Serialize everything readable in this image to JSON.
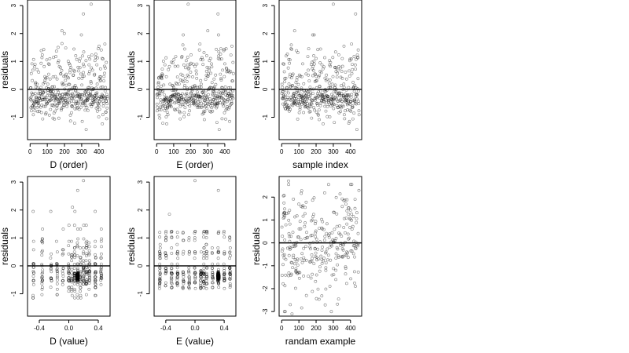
{
  "chart_data": [
    {
      "type": "scatter",
      "xlabel": "D (order)",
      "ylabel": "residuals",
      "x_ticks": [
        "0",
        "100",
        "200",
        "300",
        "400"
      ],
      "y_ticks": [
        "-1",
        "0",
        "1",
        "2",
        "3"
      ],
      "xlim": [
        -15,
        465
      ],
      "ylim": [
        -1.8,
        3.2
      ],
      "reference_line_y": 0,
      "n_points": 450,
      "x_range": [
        1,
        450
      ],
      "y_range": [
        -1.7,
        3.05
      ],
      "structure": "residuals vs observation order; band roughly -1.7 to 1.9 with a few outliers near 2.7 and 3.05",
      "outliers": [
        [
          115,
          1.1
        ],
        [
          310,
          2.7
        ],
        [
          355,
          3.05
        ],
        [
          185,
          2.1
        ]
      ]
    },
    {
      "type": "scatter",
      "xlabel": "E (order)",
      "ylabel": "residuals",
      "x_ticks": [
        "0",
        "100",
        "200",
        "300",
        "400"
      ],
      "y_ticks": [
        "-1",
        "0",
        "1",
        "2",
        "3"
      ],
      "xlim": [
        -15,
        465
      ],
      "ylim": [
        -1.8,
        3.2
      ],
      "reference_line_y": 0,
      "n_points": 450,
      "x_range": [
        1,
        450
      ],
      "y_range": [
        -1.7,
        3.05
      ],
      "structure": "residuals vs observation order; dense band between about -0.8 and 1.2",
      "outliers": [
        [
          185,
          3.05
        ],
        [
          360,
          2.7
        ],
        [
          300,
          2.1
        ]
      ]
    },
    {
      "type": "scatter",
      "xlabel": "sample index",
      "ylabel": "residuals",
      "x_ticks": [
        "0",
        "100",
        "200",
        "300",
        "400"
      ],
      "y_ticks": [
        "-1",
        "0",
        "1",
        "2",
        "3"
      ],
      "xlim": [
        -15,
        465
      ],
      "ylim": [
        -1.8,
        3.2
      ],
      "reference_line_y": 0,
      "n_points": 450,
      "x_range": [
        1,
        450
      ],
      "y_range": [
        -1.7,
        3.05
      ],
      "structure": "residuals vs sample index; no visible trend",
      "outliers": [
        [
          300,
          3.05
        ],
        [
          430,
          2.7
        ],
        [
          75,
          2.1
        ]
      ]
    },
    {
      "type": "scatter",
      "xlabel": "D (value)",
      "ylabel": "residuals",
      "x_ticks": [
        "-0.4",
        "0.0",
        "0.4"
      ],
      "y_ticks": [
        "-1",
        "0",
        "1",
        "2",
        "3"
      ],
      "xlim": [
        -0.56,
        0.56
      ],
      "ylim": [
        -1.8,
        3.2
      ],
      "reference_line_y": 0,
      "n_points": 450,
      "x_range": [
        -0.5,
        0.5
      ],
      "y_range": [
        -1.7,
        3.05
      ],
      "structure": "points stack in vertical columns at discrete D values; dense cluster near D=0.12, residual -0.4",
      "outliers": [
        [
          0.2,
          3.05
        ],
        [
          0.12,
          2.7
        ],
        [
          0.05,
          2.1
        ]
      ]
    },
    {
      "type": "scatter",
      "xlabel": "E (value)",
      "ylabel": "residuals",
      "x_ticks": [
        "-0.4",
        "0.0",
        "0.4"
      ],
      "y_ticks": [
        "-1",
        "0",
        "1",
        "2",
        "3"
      ],
      "xlim": [
        -0.56,
        0.56
      ],
      "ylim": [
        -1.8,
        3.2
      ],
      "reference_line_y": 0,
      "n_points": 450,
      "x_range": [
        -0.5,
        0.5
      ],
      "y_range": [
        -1.7,
        3.05
      ],
      "structure": "points stack in vertical columns at discrete E values; dense cluster near E=0.32, residual -0.4",
      "outliers": [
        [
          0.0,
          3.05
        ],
        [
          0.32,
          2.7
        ],
        [
          -0.35,
          1.85
        ]
      ]
    },
    {
      "type": "scatter",
      "xlabel": "randam example",
      "ylabel": "residuals",
      "x_ticks": [
        "0",
        "100",
        "200",
        "300",
        "400"
      ],
      "y_ticks": [
        "-3",
        "-2",
        "-1",
        "0",
        "1",
        "2"
      ],
      "xlim": [
        -15,
        465
      ],
      "ylim": [
        -3.2,
        2.9
      ],
      "reference_line_y": 0,
      "n_points": 300,
      "x_range": [
        1,
        450
      ],
      "y_range": [
        -3.1,
        2.7
      ],
      "structure": "random normal noise around zero, no structure",
      "outliers": [
        [
          40,
          2.7
        ],
        [
          60,
          -3.1
        ],
        [
          50,
          -2.7
        ]
      ]
    }
  ]
}
